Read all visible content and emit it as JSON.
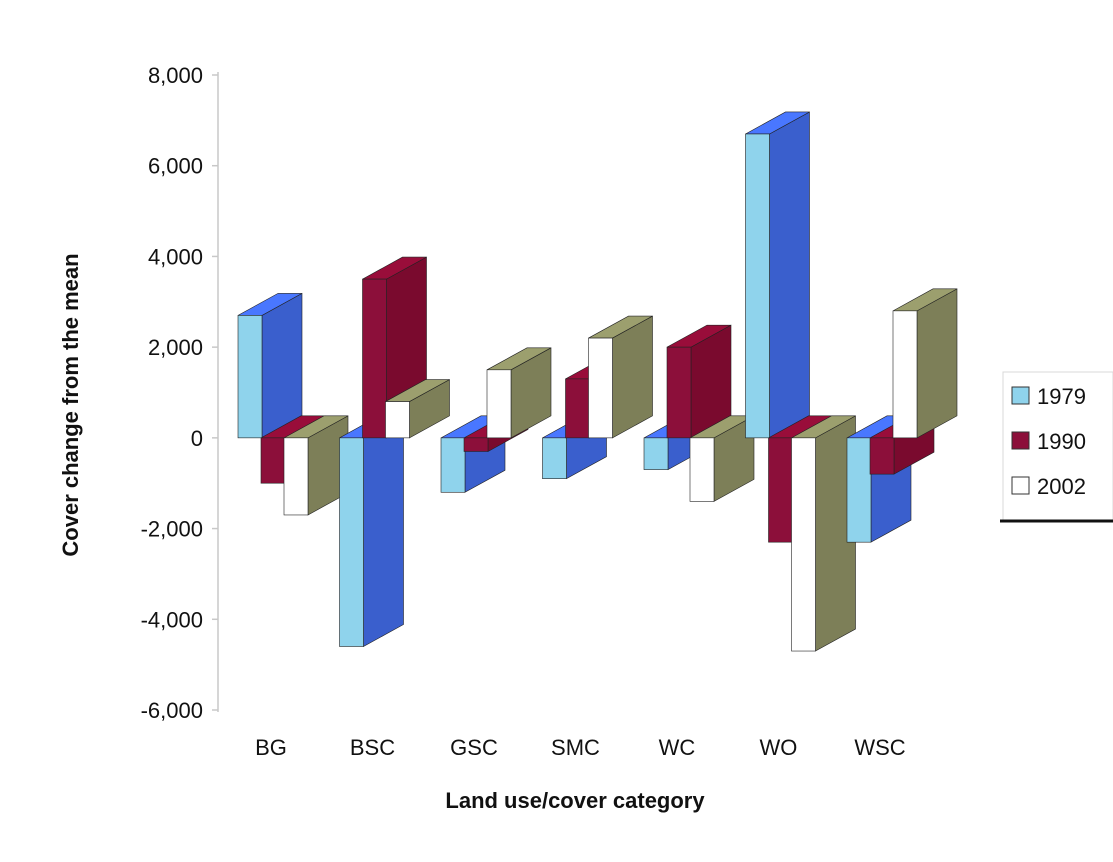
{
  "chart_data": {
    "type": "bar",
    "title": "",
    "xlabel": "Land use/cover category",
    "ylabel": "Cover change from the mean",
    "ylim": [
      -6000,
      8000
    ],
    "yticks": [
      "8,000",
      "6,000",
      "4,000",
      "2,000",
      "0",
      "-2,000",
      "-4,000",
      "-6,000"
    ],
    "ytick_values": [
      8000,
      6000,
      4000,
      2000,
      0,
      -2000,
      -4000,
      -6000
    ],
    "categories": [
      "BG",
      "BSC",
      "GSC",
      "SMC",
      "WC",
      "WO",
      "WSC"
    ],
    "series": [
      {
        "name": "1979",
        "values": [
          2700,
          -4600,
          -1200,
          -900,
          -700,
          6700,
          -2300
        ],
        "color": "#3a5fcd",
        "face_color": "#8fd3ec"
      },
      {
        "name": "1990",
        "values": [
          -1000,
          3500,
          -300,
          1300,
          2000,
          -2300,
          -800
        ],
        "color": "#7a0a2e",
        "face_color": "#8c0f3a"
      },
      {
        "name": "2002",
        "values": [
          -1700,
          800,
          1500,
          2200,
          -1400,
          -4700,
          2800
        ],
        "color": "#7d7f58",
        "face_color": "#ffffff"
      }
    ],
    "legend_position": "right",
    "grid": false,
    "projection": "3d"
  }
}
